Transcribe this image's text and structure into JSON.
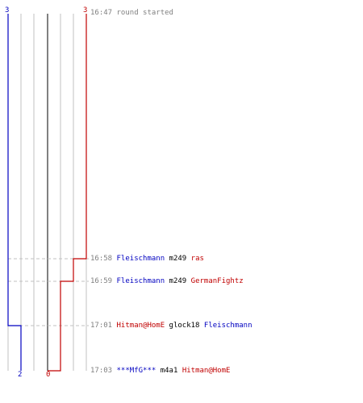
{
  "teams": {
    "blue": {
      "color": "#0000c0",
      "start_count": "3",
      "end_count": "2"
    },
    "red": {
      "color": "#c00000",
      "start_count": "3",
      "end_count": "0"
    }
  },
  "grid_color": "#c0c0c0",
  "center_line_color": "#808080",
  "events": [
    {
      "time": "16:47",
      "type": "start",
      "text": "round started"
    },
    {
      "time": "16:58",
      "type": "kill",
      "killer": "Fleischmann",
      "killer_team": "blue",
      "weapon": "m249",
      "victim": "ras",
      "victim_team": "red"
    },
    {
      "time": "16:59",
      "type": "kill",
      "killer": "Fleischmann",
      "killer_team": "blue",
      "weapon": "m249",
      "victim": "GermanFightz",
      "victim_team": "red"
    },
    {
      "time": "17:01",
      "type": "kill",
      "killer": "Hitman@HomE",
      "killer_team": "red",
      "weapon": "glock18",
      "victim": "Fleischmann",
      "victim_team": "blue"
    },
    {
      "time": "17:03",
      "type": "kill",
      "killer": "***MfG***",
      "killer_team": "blue",
      "weapon": "m4a1",
      "victim": "Hitman@HomE",
      "victim_team": "red"
    }
  ]
}
